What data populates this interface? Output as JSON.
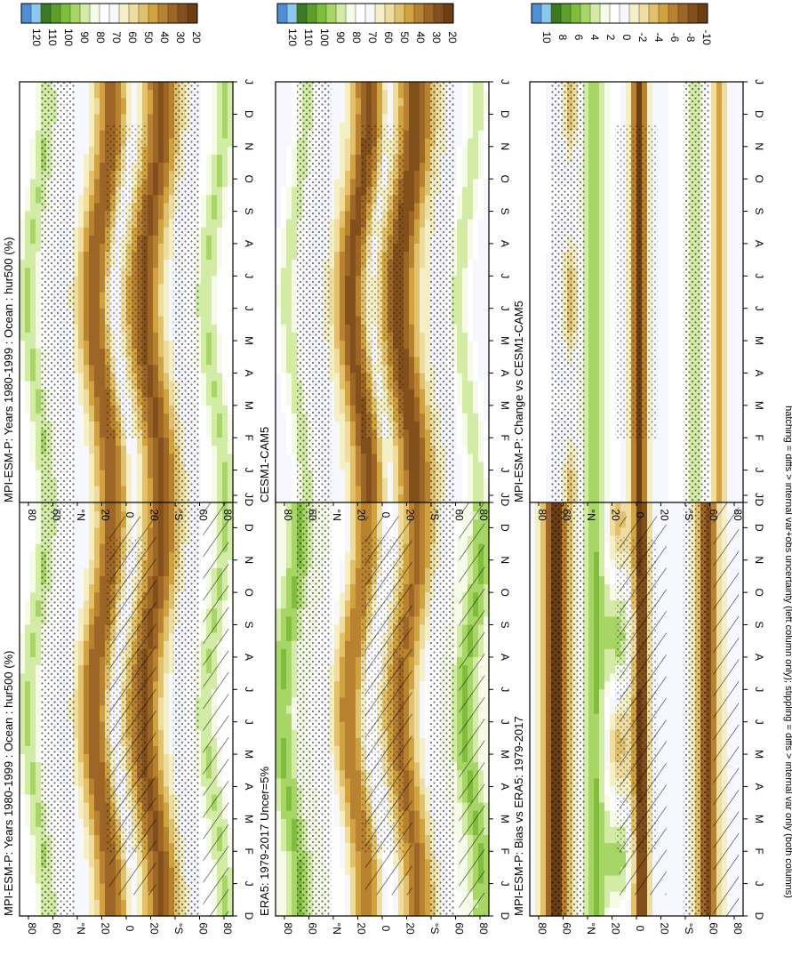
{
  "footer_note": "hatching = diffs > internal var+obs uncertainty (left column only); stippling = diffs > internal var only (both columns)",
  "colors": {
    "abs_scale": [
      "#4f8fd6",
      "#8cc7ee",
      "#3d7a1f",
      "#5e9e2b",
      "#7fbe3c",
      "#a8d666",
      "#d2eca6",
      "#f5fbe6",
      "#ffffff",
      "#f7f7ff",
      "#f5efc6",
      "#eedca0",
      "#e2c16d",
      "#d0a33e",
      "#b88230",
      "#9d6626",
      "#83501c",
      "#6b3e14"
    ],
    "diff_scale": [
      "#4f8fd6",
      "#8cc7ee",
      "#3d7a1f",
      "#5e9e2b",
      "#7fbe3c",
      "#a8d666",
      "#d2eca6",
      "#f5fbe6",
      "#ffffff",
      "#f7f7ff",
      "#f5efc6",
      "#eedca0",
      "#e2c16d",
      "#d0a33e",
      "#b88230",
      "#9d6626",
      "#83501c",
      "#6b3e14"
    ]
  },
  "chart_data": [
    {
      "type": "heatmap",
      "title": "MPI-ESM-P: Years 1980-1999 : Ocean : hur500 (%)",
      "x": [
        "D",
        "J",
        "F",
        "M",
        "A",
        "M",
        "J",
        "J",
        "A",
        "S",
        "O",
        "N",
        "D",
        "J"
      ],
      "y_ticks": [
        "80",
        "60",
        "°N",
        "20",
        "0",
        "20",
        "°S",
        "60",
        "80"
      ],
      "ylim": [
        -90,
        90
      ],
      "colorbar": {
        "labels": [
          "120",
          "110",
          "100",
          "90",
          "80",
          "70",
          "60",
          "50",
          "40",
          "30",
          "20"
        ],
        "range": [
          20,
          120
        ]
      },
      "pattern": "model",
      "hatching": true,
      "stippling": true
    },
    {
      "type": "heatmap",
      "title": "ERA5: 1979-2017 Uncer=5%",
      "x": [
        "D",
        "J",
        "F",
        "M",
        "A",
        "M",
        "J",
        "J",
        "A",
        "S",
        "O",
        "N",
        "D",
        "J"
      ],
      "y_ticks": [
        "80",
        "60",
        "°N",
        "20",
        "0",
        "20",
        "°S",
        "60",
        "80"
      ],
      "ylim": [
        -90,
        90
      ],
      "colorbar": {
        "labels": [
          "120",
          "110",
          "100",
          "90",
          "80",
          "70",
          "60",
          "50",
          "40",
          "30",
          "20"
        ],
        "range": [
          20,
          120
        ]
      },
      "pattern": "obs",
      "hatching": true,
      "stippling": true
    },
    {
      "type": "heatmap",
      "title": "MPI-ESM-P: Bias vs ERA5: 1979-2017",
      "x": [
        "D",
        "J",
        "F",
        "M",
        "A",
        "M",
        "J",
        "J",
        "A",
        "S",
        "O",
        "N",
        "D",
        "J"
      ],
      "y_ticks": [
        "80",
        "60",
        "°N",
        "20",
        "0",
        "20",
        "°S",
        "60",
        "80"
      ],
      "ylim": [
        -90,
        90
      ],
      "colorbar": {
        "labels": [
          "10",
          "8",
          "6",
          "4",
          "2",
          "0",
          "-2",
          "-4",
          "-6",
          "-8",
          "-10"
        ],
        "range": [
          -10,
          10
        ]
      },
      "pattern": "bias",
      "hatching": true,
      "stippling": true
    },
    {
      "type": "heatmap",
      "title": "MPI-ESM-P: Years 1980-1999 : Ocean : hur500 (%)",
      "x": [
        "D",
        "J",
        "F",
        "M",
        "A",
        "M",
        "J",
        "J",
        "A",
        "S",
        "O",
        "N",
        "D",
        "J"
      ],
      "y_ticks": [
        "80",
        "60",
        "°N",
        "20",
        "0",
        "20",
        "°S",
        "60",
        "80"
      ],
      "ylim": [
        -90,
        90
      ],
      "colorbar": {
        "labels": [
          "120",
          "110",
          "100",
          "90",
          "80",
          "70",
          "60",
          "50",
          "40",
          "30",
          "20"
        ],
        "range": [
          20,
          120
        ]
      },
      "pattern": "model",
      "hatching": false,
      "stippling": true
    },
    {
      "type": "heatmap",
      "title": "CESM1-CAM5",
      "x": [
        "D",
        "J",
        "F",
        "M",
        "A",
        "M",
        "J",
        "J",
        "A",
        "S",
        "O",
        "N",
        "D",
        "J"
      ],
      "y_ticks": [
        "80",
        "60",
        "°N",
        "20",
        "0",
        "20",
        "°S",
        "60",
        "80"
      ],
      "ylim": [
        -90,
        90
      ],
      "colorbar": {
        "labels": [
          "120",
          "110",
          "100",
          "90",
          "80",
          "70",
          "60",
          "50",
          "40",
          "30",
          "20"
        ],
        "range": [
          20,
          120
        ]
      },
      "pattern": "model2",
      "hatching": false,
      "stippling": true
    },
    {
      "type": "heatmap",
      "title": "MPI-ESM-P: Change vs CESM1-CAM5",
      "x": [
        "D",
        "J",
        "F",
        "M",
        "A",
        "M",
        "J",
        "J",
        "A",
        "S",
        "O",
        "N",
        "D",
        "J"
      ],
      "y_ticks": [
        "80",
        "60",
        "°N",
        "20",
        "0",
        "20",
        "°S",
        "60",
        "80"
      ],
      "ylim": [
        -90,
        90
      ],
      "colorbar": {
        "labels": [
          "10",
          "8",
          "6",
          "4",
          "2",
          "0",
          "-2",
          "-4",
          "-6",
          "-8",
          "-10"
        ],
        "range": [
          -10,
          10
        ]
      },
      "pattern": "change",
      "hatching": false,
      "stippling": true
    }
  ]
}
